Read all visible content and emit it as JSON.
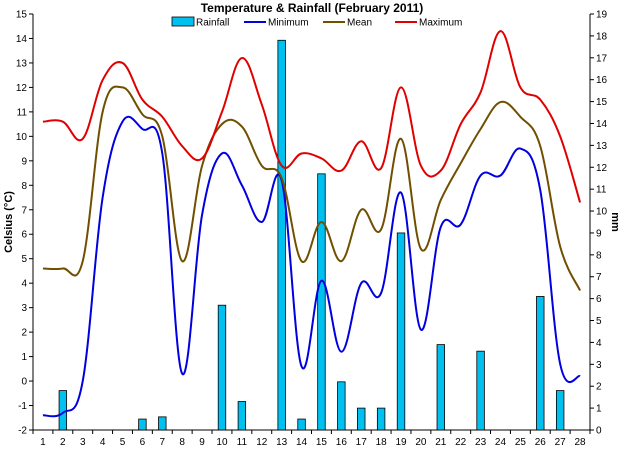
{
  "chart_data": {
    "type": "bar+line",
    "title": "Temperature & Rainfall (February 2011)",
    "xlabel": "",
    "ylabel_left": "Celsius (°C)",
    "ylabel_right": "mm",
    "x": [
      1,
      2,
      3,
      4,
      5,
      6,
      7,
      8,
      9,
      10,
      11,
      12,
      13,
      14,
      15,
      16,
      17,
      18,
      19,
      20,
      21,
      22,
      23,
      24,
      25,
      26,
      27,
      28
    ],
    "y_left_lim": [
      -2,
      15
    ],
    "y_right_lim": [
      0,
      19
    ],
    "y_left_ticks": [
      -2,
      -1,
      0,
      1,
      2,
      3,
      4,
      5,
      6,
      7,
      8,
      9,
      10,
      11,
      12,
      13,
      14,
      15
    ],
    "y_right_ticks": [
      0,
      1,
      2,
      3,
      4,
      5,
      6,
      7,
      8,
      9,
      10,
      11,
      12,
      13,
      14,
      15,
      16,
      17,
      18,
      19
    ],
    "grid": false,
    "legend_position": "top",
    "series": [
      {
        "name": "Rainfall",
        "kind": "bar",
        "axis": "right",
        "color": "#00C0F0",
        "values": [
          0,
          1.8,
          0,
          0,
          0,
          0.5,
          0.6,
          0,
          0,
          5.7,
          1.3,
          0,
          17.8,
          0.5,
          11.7,
          2.2,
          1.0,
          1.0,
          9.0,
          0,
          3.9,
          0,
          3.6,
          0,
          0,
          6.1,
          1.8,
          0
        ]
      },
      {
        "name": "Minimum",
        "kind": "line",
        "axis": "left",
        "color": "#0000E0",
        "values": [
          -1.4,
          -1.3,
          0.0,
          7.5,
          10.6,
          10.3,
          9.3,
          0.3,
          6.8,
          9.3,
          8.0,
          6.5,
          8.2,
          0.6,
          4.1,
          1.2,
          4.0,
          3.6,
          7.7,
          2.1,
          6.3,
          6.4,
          8.4,
          8.4,
          9.5,
          7.8,
          0.7,
          0.2
        ]
      },
      {
        "name": "Mean",
        "kind": "line",
        "axis": "left",
        "color": "#705000",
        "values": [
          4.6,
          4.6,
          4.9,
          11.0,
          12.0,
          10.9,
          10.0,
          4.9,
          8.8,
          10.5,
          10.4,
          8.8,
          8.3,
          4.9,
          6.5,
          4.9,
          7.0,
          6.2,
          9.9,
          5.4,
          7.4,
          8.9,
          10.3,
          11.4,
          10.8,
          9.6,
          5.5,
          3.7
        ]
      },
      {
        "name": "Maximum",
        "kind": "line",
        "axis": "left",
        "color": "#E00000",
        "values": [
          10.6,
          10.6,
          9.9,
          12.3,
          13.0,
          11.5,
          10.8,
          9.6,
          9.1,
          11.0,
          13.2,
          11.3,
          8.8,
          9.3,
          9.1,
          8.6,
          9.8,
          8.7,
          12.0,
          8.8,
          8.6,
          10.5,
          11.8,
          14.3,
          12.0,
          11.5,
          10.0,
          7.3
        ]
      }
    ]
  }
}
